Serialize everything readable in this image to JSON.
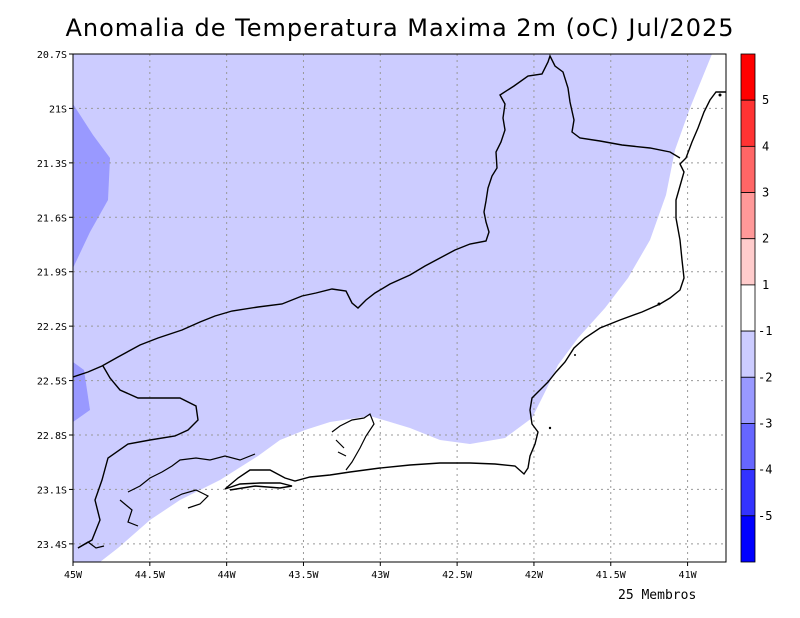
{
  "title": "Anomalia de Temperatura Maxima 2m (oC) Jul/2025",
  "footnote": "25 Membros",
  "map": {
    "lon_range": [
      -45.0,
      -40.75
    ],
    "lat_range": [
      -23.5,
      -20.7
    ],
    "lat_labels": [
      "20.7S",
      "21S",
      "21.3S",
      "21.6S",
      "21.9S",
      "22.2S",
      "22.5S",
      "22.8S",
      "23.1S",
      "23.4S"
    ],
    "lat_values": [
      -20.7,
      -21.0,
      -21.3,
      -21.6,
      -21.9,
      -22.2,
      -22.5,
      -22.8,
      -23.1,
      -23.4
    ],
    "lon_labels": [
      "45W",
      "44.5W",
      "44W",
      "43.5W",
      "43W",
      "42.5W",
      "42W",
      "41.5W",
      "41W"
    ],
    "lon_values": [
      -45.0,
      -44.5,
      -44.0,
      -43.5,
      -43.0,
      -42.5,
      -42.0,
      -41.5,
      -41.0
    ]
  },
  "colorbar": {
    "labels": [
      "5",
      "4",
      "3",
      "2",
      "1",
      "-1",
      "-2",
      "-3",
      "-4",
      "-5"
    ],
    "colors": [
      "#ff0000",
      "#ff3333",
      "#ff6666",
      "#ff9999",
      "#ffcccc",
      "#ffffff",
      "#ccccff",
      "#9999ff",
      "#6666ff",
      "#3333ff",
      "#0000ff"
    ]
  },
  "shading_colors": {
    "anomaly_minus1_to_minus2": "#ccccff",
    "anomaly_minus2_to_minus3": "#9999ff",
    "anomaly_minus1_to_1": "#ffffff"
  }
}
